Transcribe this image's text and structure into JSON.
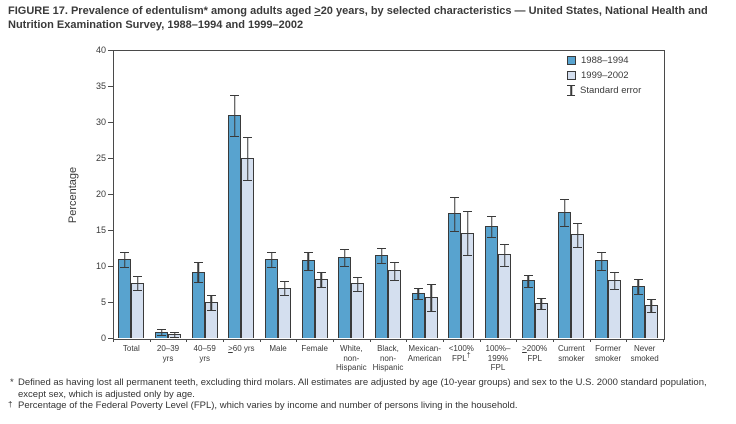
{
  "figure": {
    "title": "FIGURE 17. Prevalence of edentulism* among adults aged ≥20 years, by selected characteristics — United States, National Health and Nutrition Examination Survey, 1988–1994 and 1999–2002"
  },
  "chart_data": {
    "type": "bar",
    "title": "Prevalence of edentulism among adults aged ≥20 years, by selected characteristics, United States, NHANES 1988–1994 and 1999–2002",
    "xlabel": "",
    "ylabel": "Percentage",
    "ylim": [
      0,
      40
    ],
    "yticks": [
      0,
      5,
      10,
      15,
      20,
      25,
      30,
      35,
      40
    ],
    "grid": false,
    "legend_position": "top-right-inside",
    "legend_note": "Standard error",
    "categories": [
      "Total",
      "20–39\nyrs",
      "40–59\nyrs",
      "≥60 yrs",
      "Male",
      "Female",
      "White,\nnon-\nHispanic",
      "Black,\nnon-\nHispanic",
      "Mexican-\nAmerican",
      "<100%\nFPL†",
      "100%–\n199%\nFPL",
      "≥200%\nFPL",
      "Current\nsmoker",
      "Former\nsmoker",
      "Never\nsmoked"
    ],
    "series": [
      {
        "name": "1988–1994",
        "color": "#58A3CF",
        "values": [
          11,
          0.9,
          9.2,
          31,
          11,
          10.8,
          11.2,
          11.5,
          6.3,
          17.3,
          15.6,
          8,
          17.5,
          10.8,
          7.2
        ],
        "standard_errors": [
          1,
          0.3,
          1.3,
          2.8,
          1,
          1.2,
          1.1,
          1,
          0.7,
          2.3,
          1.4,
          0.8,
          1.8,
          1.2,
          1
        ]
      },
      {
        "name": "1999–2002",
        "color": "#D4DFEF",
        "values": [
          7.7,
          0.6,
          5,
          25,
          7,
          8.2,
          7.6,
          9.4,
          5.7,
          14.6,
          11.6,
          4.9,
          14.4,
          8,
          4.6
        ],
        "standard_errors": [
          0.9,
          0.3,
          1,
          2.9,
          0.9,
          1,
          0.9,
          1.2,
          1.8,
          3,
          1.5,
          0.7,
          1.6,
          1.1,
          0.8
        ]
      }
    ]
  },
  "footnotes": [
    {
      "marker": "*",
      "text": "Defined as having lost all permanent teeth, excluding third molars. All estimates are adjusted by age (10-year groups) and sex to the U.S. 2000 standard population, except sex, which is adjusted only by age."
    },
    {
      "marker": "†",
      "text": "Percentage of the Federal Poverty Level (FPL), which varies by income and number of persons living in the household."
    }
  ],
  "colors": {
    "series1": "#58A3CF",
    "series2": "#D4DFEF",
    "bar_border": "#3A3A3A",
    "axis": "#4A4A4A",
    "text": "#3A3A3A"
  }
}
